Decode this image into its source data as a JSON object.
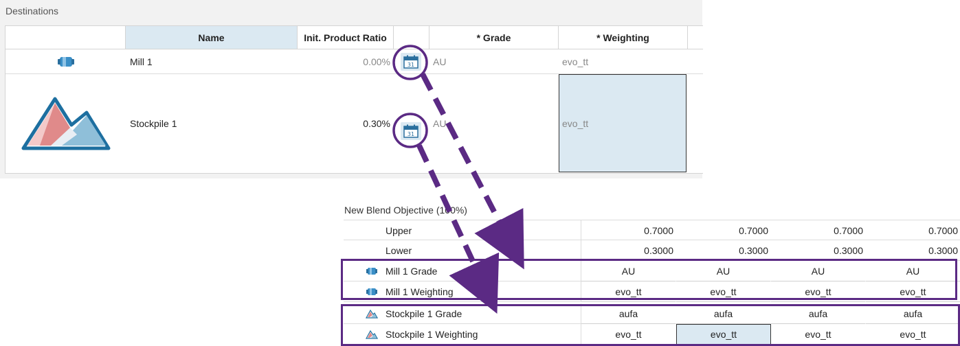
{
  "destinations": {
    "title": "Destinations",
    "columns": {
      "name": "Name",
      "ratio": "Init. Product Ratio",
      "grade": "* Grade",
      "weighting": "* Weighting"
    },
    "rows": [
      {
        "icon": "mill-icon",
        "name": "Mill 1",
        "ratio": "0.00%",
        "grade": "AU",
        "weighting": "evo_tt",
        "calendar_label": "31"
      },
      {
        "icon": "stockpile-icon",
        "name": "Stockpile 1",
        "ratio": "0.30%",
        "grade": "AU",
        "weighting": "evo_tt",
        "calendar_label": "31"
      }
    ]
  },
  "blend": {
    "title": "New Blend Objective (100%)",
    "rows": [
      {
        "label": "Upper",
        "values": [
          "0.7000",
          "0.7000",
          "0.7000",
          "0.7000"
        ]
      },
      {
        "label": "Lower",
        "values": [
          "0.3000",
          "0.3000",
          "0.3000",
          "0.3000"
        ]
      },
      {
        "label": "Mill 1 Grade",
        "icon": "mill-icon",
        "values": [
          "AU",
          "AU",
          "AU",
          "AU"
        ]
      },
      {
        "label": "Mill 1 Weighting",
        "icon": "mill-icon",
        "values": [
          "evo_tt",
          "evo_tt",
          "evo_tt",
          "evo_tt"
        ]
      },
      {
        "label": "Stockpile 1 Grade",
        "icon": "stockpile-icon",
        "values": [
          "aufa",
          "aufa",
          "aufa",
          "aufa"
        ]
      },
      {
        "label": "Stockpile 1 Weighting",
        "icon": "stockpile-icon",
        "values": [
          "evo_tt",
          "evo_tt",
          "evo_tt",
          "evo_tt"
        ]
      }
    ]
  },
  "colors": {
    "annotation": "#5b2a84",
    "selection": "#dbe9f2",
    "mill_icon": "#3a8fc7"
  }
}
